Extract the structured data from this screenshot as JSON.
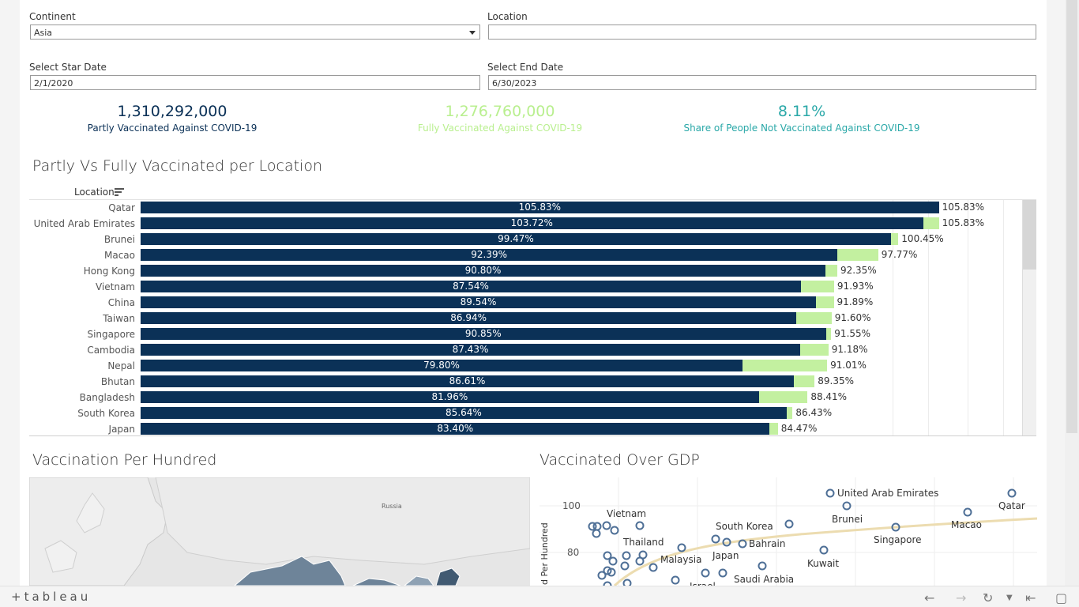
{
  "filters": {
    "continent_label": "Continent",
    "continent_value": "Asia",
    "location_label": "Location",
    "location_value": "",
    "start_label": "Select Star Date",
    "start_value": "2/1/2020",
    "end_label": "Select End Date",
    "end_value": "6/30/2023"
  },
  "kpis": [
    {
      "value": "1,310,292,000",
      "label": "Partly Vaccinated Against COVID-19",
      "color": "#0b3157"
    },
    {
      "value": "1,276,760,000",
      "label": "Fully Vaccinated Against COVID-19",
      "color": "#b9ef8f"
    },
    {
      "value": "8.11%",
      "label": "Share of People Not Vaccinated Against COVID-19",
      "color": "#2aa8a8"
    }
  ],
  "bar_section": {
    "title": "Partly Vs Fully Vaccinated per Location",
    "column_header": "Location"
  },
  "chart_data": {
    "type": "bar",
    "categories": [
      "Qatar",
      "United Arab Emirates",
      "Brunei",
      "Macao",
      "Hong Kong",
      "Vietnam",
      "China",
      "Taiwan",
      "Singapore",
      "Cambodia",
      "Nepal",
      "Bhutan",
      "Bangladesh",
      "South Korea",
      "Japan"
    ],
    "series": [
      {
        "values": [
          105.83,
          103.72,
          99.47,
          92.39,
          90.8,
          87.54,
          89.54,
          86.94,
          90.85,
          87.43,
          79.8,
          86.61,
          81.96,
          85.64,
          83.4
        ],
        "labels": [
          "105.83%",
          "103.72%",
          "99.47%",
          "92.39%",
          "90.80%",
          "87.54%",
          "89.54%",
          "86.94%",
          "90.85%",
          "87.43%",
          "79.80%",
          "86.61%",
          "81.96%",
          "85.64%",
          "83.40%"
        ]
      },
      {
        "values": [
          105.83,
          105.83,
          100.45,
          97.77,
          92.35,
          91.93,
          91.89,
          91.6,
          91.55,
          91.18,
          91.01,
          89.35,
          88.41,
          86.43,
          84.47
        ],
        "labels": [
          "105.83%",
          "105.83%",
          "100.45%",
          "97.77%",
          "92.35%",
          "91.93%",
          "91.89%",
          "91.60%",
          "91.55%",
          "91.18%",
          "91.01%",
          "89.35%",
          "88.41%",
          "86.43%",
          "84.47%"
        ]
      }
    ],
    "colors": [
      "#0b3157",
      "#c3f0a0"
    ]
  },
  "map_section": {
    "title": "Vaccination Per Hundred",
    "region_label": "Russia"
  },
  "scatter_section": {
    "title": "Vaccinated Over GDP",
    "y_axis_label": "d Per Hundred",
    "y_ticks": [
      "100",
      "80"
    ],
    "labels": [
      "United Arab Emirates",
      "Qatar",
      "Brunei",
      "Macao",
      "Vietnam",
      "South Korea",
      "Singapore",
      "Thailand",
      "Bahrain",
      "Japan",
      "Malaysia",
      "Kuwait",
      "Saudi Arabia",
      "Israel"
    ]
  },
  "footer": {
    "logo": "+tableau"
  }
}
